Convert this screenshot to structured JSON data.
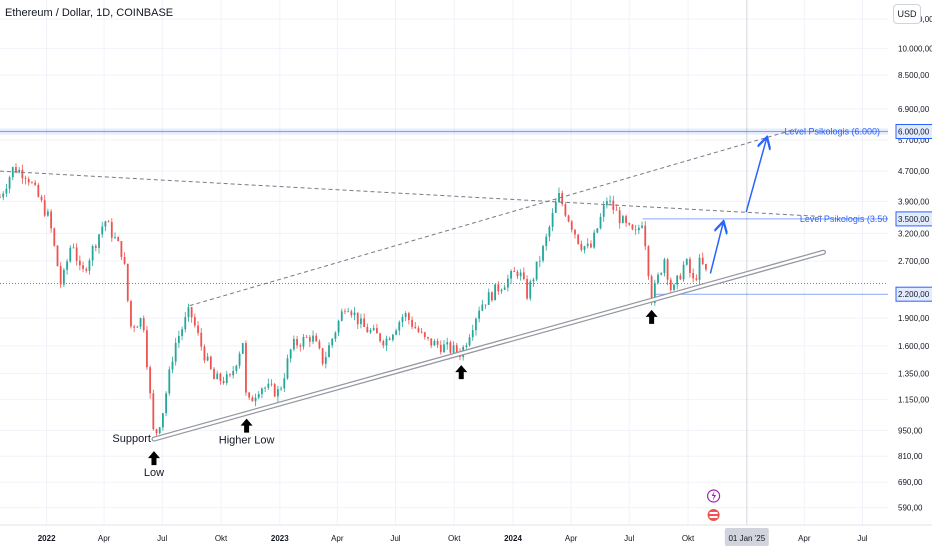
{
  "header": {
    "title": "Ethereum / Dollar, 1D, COINBASE",
    "currency_button": "USD"
  },
  "colors": {
    "up": "#26a69a",
    "down": "#ef5350",
    "level_line": "#2962ff",
    "level_text": "#2962ff",
    "trend": "#787b86"
  },
  "chart_data": {
    "type": "candlestick",
    "title": "Ethereum / Dollar, 1D, COINBASE",
    "y_scale": "log",
    "ylim": [
      530,
      13500
    ],
    "xlim": [
      "2021-10-20",
      "2025-08-10"
    ],
    "x_ticks": [
      {
        "date": "2022-01-01",
        "label": "2022"
      },
      {
        "date": "2022-04-01",
        "label": "Apr"
      },
      {
        "date": "2022-07-01",
        "label": "Jul"
      },
      {
        "date": "2022-10-01",
        "label": "Okt"
      },
      {
        "date": "2023-01-01",
        "label": "2023"
      },
      {
        "date": "2023-04-01",
        "label": "Apr"
      },
      {
        "date": "2023-07-01",
        "label": "Jul"
      },
      {
        "date": "2023-10-01",
        "label": "Okt"
      },
      {
        "date": "2024-01-01",
        "label": "2024"
      },
      {
        "date": "2024-04-01",
        "label": "Apr"
      },
      {
        "date": "2024-07-01",
        "label": "Jul"
      },
      {
        "date": "2024-10-01",
        "label": "Okt"
      },
      {
        "date": "2025-04-01",
        "label": "Apr"
      },
      {
        "date": "2025-07-01",
        "label": "Jul"
      }
    ],
    "x_highlight": {
      "date": "2025-01-01",
      "label": "01 Jan '25"
    },
    "y_ticks": [
      {
        "value": 12000,
        "label": "12.000,00"
      },
      {
        "value": 10000,
        "label": "10.000,00"
      },
      {
        "value": 8500,
        "label": "8.500,00"
      },
      {
        "value": 6900,
        "label": "6.900,00"
      },
      {
        "value": 5700,
        "label": "5.700,00"
      },
      {
        "value": 4700,
        "label": "4.700,00"
      },
      {
        "value": 3900,
        "label": "3.900,00"
      },
      {
        "value": 3200,
        "label": "3.200,00"
      },
      {
        "value": 2700,
        "label": "2.700,00"
      },
      {
        "value": 1900,
        "label": "1.900,00"
      },
      {
        "value": 1600,
        "label": "1.600,00"
      },
      {
        "value": 1350,
        "label": "1.350,00"
      },
      {
        "value": 1150,
        "label": "1.150,00"
      },
      {
        "value": 950,
        "label": "950,00"
      },
      {
        "value": 810,
        "label": "810,00"
      },
      {
        "value": 690,
        "label": "690,00"
      },
      {
        "value": 590,
        "label": "590,00"
      }
    ],
    "price_levels": [
      {
        "value": 6000,
        "label": "6.000,00",
        "annotation": "Level Psikologis (6.000)"
      },
      {
        "value": 3500,
        "label": "3.500,00",
        "annotation": "Level Psikologis (3.500)"
      },
      {
        "value": 2200,
        "label": "2.200,00",
        "annotation": ""
      }
    ],
    "path_points": [
      {
        "date": "2021-10-20",
        "price": 4000
      },
      {
        "date": "2021-11-10",
        "price": 4800
      },
      {
        "date": "2021-12-01",
        "price": 4600
      },
      {
        "date": "2022-01-05",
        "price": 3500
      },
      {
        "date": "2022-01-24",
        "price": 2300
      },
      {
        "date": "2022-02-10",
        "price": 3100
      },
      {
        "date": "2022-02-24",
        "price": 2450
      },
      {
        "date": "2022-04-02",
        "price": 3480
      },
      {
        "date": "2022-05-01",
        "price": 2800
      },
      {
        "date": "2022-05-12",
        "price": 1800
      },
      {
        "date": "2022-06-01",
        "price": 1900
      },
      {
        "date": "2022-06-18",
        "price": 900
      },
      {
        "date": "2022-07-01",
        "price": 1050
      },
      {
        "date": "2022-07-20",
        "price": 1600
      },
      {
        "date": "2022-08-13",
        "price": 1990
      },
      {
        "date": "2022-09-01",
        "price": 1580
      },
      {
        "date": "2022-09-20",
        "price": 1300
      },
      {
        "date": "2022-10-15",
        "price": 1300
      },
      {
        "date": "2022-11-04",
        "price": 1650
      },
      {
        "date": "2022-11-10",
        "price": 1100
      },
      {
        "date": "2022-12-01",
        "price": 1250
      },
      {
        "date": "2022-12-31",
        "price": 1200
      },
      {
        "date": "2023-01-20",
        "price": 1600
      },
      {
        "date": "2023-02-20",
        "price": 1700
      },
      {
        "date": "2023-03-10",
        "price": 1450
      },
      {
        "date": "2023-04-15",
        "price": 2100
      },
      {
        "date": "2023-05-10",
        "price": 1800
      },
      {
        "date": "2023-06-15",
        "price": 1650
      },
      {
        "date": "2023-07-15",
        "price": 1950
      },
      {
        "date": "2023-08-17",
        "price": 1650
      },
      {
        "date": "2023-09-10",
        "price": 1600
      },
      {
        "date": "2023-10-12",
        "price": 1530
      },
      {
        "date": "2023-11-10",
        "price": 2050
      },
      {
        "date": "2023-12-10",
        "price": 2300
      },
      {
        "date": "2024-01-10",
        "price": 2550
      },
      {
        "date": "2024-01-23",
        "price": 2200
      },
      {
        "date": "2024-02-20",
        "price": 3000
      },
      {
        "date": "2024-03-12",
        "price": 4050
      },
      {
        "date": "2024-04-15",
        "price": 3000
      },
      {
        "date": "2024-05-01",
        "price": 2900
      },
      {
        "date": "2024-05-27",
        "price": 3950
      },
      {
        "date": "2024-06-25",
        "price": 3350
      },
      {
        "date": "2024-07-10",
        "price": 3150
      },
      {
        "date": "2024-07-22",
        "price": 3500
      },
      {
        "date": "2024-08-05",
        "price": 2150
      },
      {
        "date": "2024-08-25",
        "price": 2750
      },
      {
        "date": "2024-09-06",
        "price": 2200
      },
      {
        "date": "2024-09-27",
        "price": 2700
      },
      {
        "date": "2024-10-10",
        "price": 2350
      },
      {
        "date": "2024-10-20",
        "price": 2700
      },
      {
        "date": "2024-11-01",
        "price": 2450
      }
    ],
    "trendlines": [
      {
        "id": "support",
        "style": "double",
        "from": {
          "date": "2022-06-18",
          "price": 900
        },
        "to": {
          "date": "2025-05-01",
          "price": 2850
        }
      },
      {
        "id": "descending",
        "style": "dashed",
        "from": {
          "date": "2021-10-20",
          "price": 4700
        },
        "to": {
          "date": "2025-05-01",
          "price": 3550
        }
      },
      {
        "id": "ascending",
        "style": "dashed",
        "from": {
          "date": "2022-08-13",
          "price": 2050
        },
        "to": {
          "date": "2025-03-20",
          "price": 6100
        }
      }
    ],
    "projection_arrows": [
      {
        "from": {
          "date": "2024-11-05",
          "price": 2500
        },
        "to": {
          "date": "2024-11-25",
          "price": 3420
        }
      },
      {
        "from": {
          "date": "2024-12-31",
          "price": 3650
        },
        "to": {
          "date": "2025-02-01",
          "price": 5750
        }
      }
    ],
    "annotations": [
      {
        "text": "Support",
        "date": "2022-06-18",
        "price": 900
      },
      {
        "text": "Low",
        "date": "2022-06-18",
        "price": 900
      },
      {
        "text": "Higher Low",
        "date": "2022-11-10",
        "price": 1100
      },
      {
        "text": "",
        "date": "2023-10-12",
        "price": 1530
      },
      {
        "text": "",
        "date": "2024-08-05",
        "price": 2150
      }
    ]
  }
}
